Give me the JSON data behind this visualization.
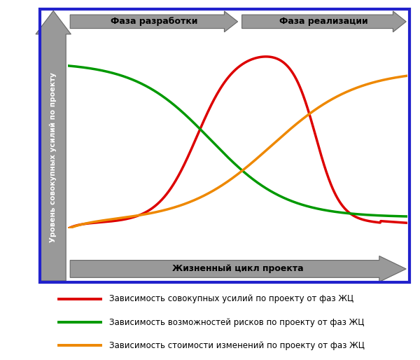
{
  "ylabel": "Уровень совокупных усилий по проекту",
  "xlabel": "Жизненный цикл проекта",
  "phase1_label": "Фаза разработки",
  "phase2_label": "Фаза реализации",
  "legend": [
    "Зависимость совокупных усилий по проекту от фаз ЖЦ",
    "Зависимость возможностей рисков по проекту от фаз ЖЦ",
    "Зависимость стоимости изменений по проекту от фаз ЖЦ"
  ],
  "colors": {
    "red": "#dd0000",
    "green": "#009900",
    "orange": "#ee8800",
    "arrow_fill": "#999999",
    "arrow_edge": "#666666",
    "border": "#2222cc",
    "bg": "#ffffff",
    "label_text": "#ffffff"
  },
  "line_width": 2.5,
  "border_width": 3.0
}
